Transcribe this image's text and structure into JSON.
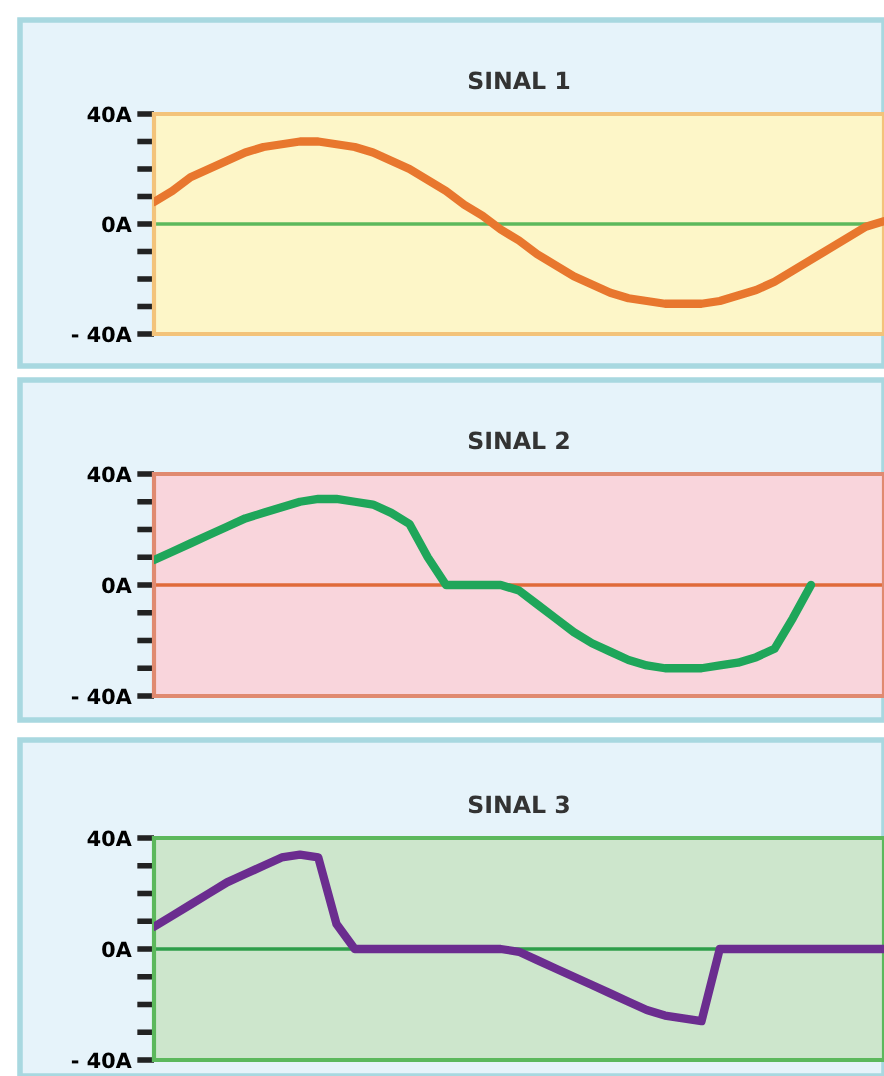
{
  "chart_data": [
    {
      "type": "line",
      "title": "SINAL 1",
      "tick_labels": "y",
      "grid": false,
      "legend": false,
      "ylim": [
        -40,
        40
      ],
      "categories": [
        null,
        null,
        null,
        null,
        null,
        null,
        null,
        null,
        null,
        null,
        null,
        null,
        null,
        null,
        null,
        null,
        null,
        null,
        null,
        null,
        null,
        null,
        null,
        null,
        null,
        null,
        null,
        null,
        null,
        null,
        null,
        null,
        null,
        null,
        null,
        null,
        null,
        null,
        null,
        null,
        null
      ],
      "yticks": [
        {
          "value": -40,
          "label": "- 40A"
        },
        {
          "value": -30,
          "label": null
        },
        {
          "value": -20,
          "label": null
        },
        {
          "value": -10,
          "label": null
        },
        {
          "value": 0,
          "label": "0A"
        },
        {
          "value": 10,
          "label": null
        },
        {
          "value": 20,
          "label": null
        },
        {
          "value": 30,
          "label": null
        },
        {
          "value": 40,
          "label": "40A"
        }
      ],
      "ref_lines": [
        {
          "axis": "y",
          "value": 0,
          "color": "#5cb85c"
        }
      ],
      "series": [
        {
          "color": "#e8772e",
          "values": [
            8,
            12,
            17,
            20,
            23,
            26,
            28,
            29,
            30,
            30,
            29,
            28,
            26,
            23,
            20,
            16,
            12,
            7,
            3,
            -2,
            -6,
            -11,
            -15,
            -19,
            -22,
            -25,
            -27,
            -28,
            -29,
            -29,
            -29,
            -28,
            -26,
            -24,
            -21,
            -17,
            -13,
            -9,
            -5,
            -1,
            1
          ]
        }
      ]
    },
    {
      "type": "line",
      "title": "SINAL 2",
      "tick_labels": "y",
      "grid": false,
      "legend": false,
      "ylim": [
        -40,
        40
      ],
      "categories": [
        null,
        null,
        null,
        null,
        null,
        null,
        null,
        null,
        null,
        null,
        null,
        null,
        null,
        null,
        null,
        null,
        null,
        null,
        null,
        null,
        null,
        null,
        null,
        null,
        null,
        null,
        null,
        null,
        null,
        null,
        null,
        null,
        null,
        null,
        null,
        null,
        null,
        null,
        null,
        null,
        null
      ],
      "yticks": [
        {
          "value": -40,
          "label": "- 40A"
        },
        {
          "value": -30,
          "label": null
        },
        {
          "value": -20,
          "label": null
        },
        {
          "value": -10,
          "label": null
        },
        {
          "value": 0,
          "label": "0A"
        },
        {
          "value": 10,
          "label": null
        },
        {
          "value": 20,
          "label": null
        },
        {
          "value": 30,
          "label": null
        },
        {
          "value": 40,
          "label": "40A"
        }
      ],
      "ref_lines": [
        {
          "axis": "y",
          "value": 0,
          "color": "#e06a3a"
        }
      ],
      "series": [
        {
          "color": "#1fa65a",
          "values": [
            9,
            12,
            15,
            18,
            21,
            24,
            26,
            28,
            30,
            31,
            31,
            30,
            29,
            26,
            22,
            10,
            0,
            0,
            0,
            0,
            -2,
            -7,
            -12,
            -17,
            -21,
            -24,
            -27,
            -29,
            -30,
            -30,
            -30,
            -29,
            -28,
            -26,
            -23,
            -12,
            0,
            null,
            null,
            null,
            null
          ]
        }
      ]
    },
    {
      "type": "line",
      "title": "SINAL 3",
      "tick_labels": "y",
      "grid": false,
      "legend": false,
      "ylim": [
        -40,
        40
      ],
      "categories": [
        null,
        null,
        null,
        null,
        null,
        null,
        null,
        null,
        null,
        null,
        null,
        null,
        null,
        null,
        null,
        null,
        null,
        null,
        null,
        null,
        null,
        null,
        null,
        null,
        null,
        null,
        null,
        null,
        null,
        null,
        null,
        null,
        null,
        null,
        null,
        null,
        null,
        null,
        null,
        null,
        null
      ],
      "yticks": [
        {
          "value": -40,
          "label": "- 40A"
        },
        {
          "value": -30,
          "label": null
        },
        {
          "value": -20,
          "label": null
        },
        {
          "value": -10,
          "label": null
        },
        {
          "value": 0,
          "label": "0A"
        },
        {
          "value": 10,
          "label": null
        },
        {
          "value": 20,
          "label": null
        },
        {
          "value": 30,
          "label": null
        },
        {
          "value": 40,
          "label": "40A"
        }
      ],
      "ref_lines": [
        {
          "axis": "y",
          "value": 0,
          "color": "#2e9e4a"
        }
      ],
      "series": [
        {
          "color": "#6b2d8f",
          "values": [
            8,
            12,
            16,
            20,
            24,
            27,
            30,
            33,
            34,
            33,
            9,
            0,
            0,
            0,
            0,
            0,
            0,
            0,
            0,
            0,
            -1,
            -4,
            -7,
            -10,
            -13,
            -16,
            -19,
            -22,
            -24,
            -25,
            -26,
            0,
            0,
            0,
            0,
            0,
            0,
            0,
            0,
            0,
            0
          ]
        }
      ]
    }
  ]
}
